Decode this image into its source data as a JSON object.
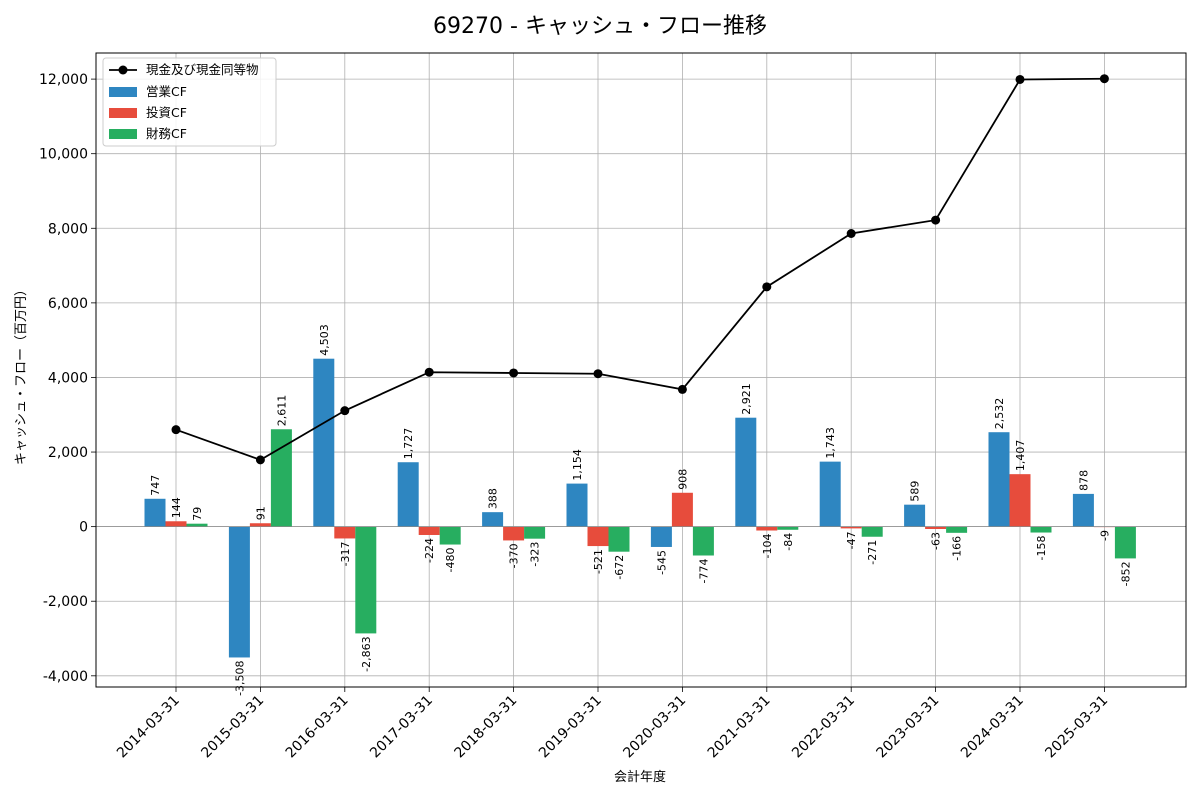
{
  "chart_data": {
    "type": "bar+line",
    "title": "69270 - キャッシュ・フロー推移",
    "xlabel": "会計年度",
    "ylabel": "キャッシュ・フロー（百万円）",
    "ylim": [
      -4300,
      12700
    ],
    "yticks": [
      -4000,
      -2000,
      0,
      2000,
      4000,
      6000,
      8000,
      10000,
      12000
    ],
    "ytick_labels": [
      "-4,000",
      "-2,000",
      "0",
      "2,000",
      "4,000",
      "6,000",
      "8,000",
      "10,000",
      "12,000"
    ],
    "grid": true,
    "legend_position": "top-left",
    "categories": [
      "2014-03-31",
      "2015-03-31",
      "2016-03-31",
      "2017-03-31",
      "2018-03-31",
      "2019-03-31",
      "2020-03-31",
      "2021-03-31",
      "2022-03-31",
      "2023-03-31",
      "2024-03-31",
      "2025-03-31"
    ],
    "line": {
      "name": "現金及び現金同等物",
      "color": "#000000",
      "values": [
        2600,
        1790,
        3110,
        4140,
        4120,
        4100,
        3680,
        6430,
        7860,
        8220,
        11990,
        12010
      ]
    },
    "series": [
      {
        "name": "営業CF",
        "color": "#2e86c1",
        "values": [
          747,
          -3508,
          4503,
          1727,
          388,
          1154,
          -545,
          2921,
          1743,
          589,
          2532,
          878
        ],
        "labels": [
          "747",
          "-3,508",
          "4,503",
          "1,727",
          "388",
          "1,154",
          "-545",
          "2,921",
          "1,743",
          "589",
          "2,532",
          "878"
        ]
      },
      {
        "name": "投資CF",
        "color": "#e74c3c",
        "values": [
          144,
          91,
          -317,
          -224,
          -370,
          -521,
          908,
          -104,
          -47,
          -63,
          1407,
          -9
        ],
        "labels": [
          "144",
          "91",
          "-317",
          "-224",
          "-370",
          "-521",
          "908",
          "-104",
          "-47",
          "-63",
          "1,407",
          "-9"
        ]
      },
      {
        "name": "財務CF",
        "color": "#27ae60",
        "values": [
          79,
          2611,
          -2863,
          -480,
          -323,
          -672,
          -774,
          -84,
          -271,
          -166,
          -158,
          -852
        ],
        "labels": [
          "79",
          "2,611",
          "-2,863",
          "-480",
          "-323",
          "-672",
          "-774",
          "-84",
          "-271",
          "-166",
          "-158",
          "-852"
        ]
      }
    ]
  }
}
